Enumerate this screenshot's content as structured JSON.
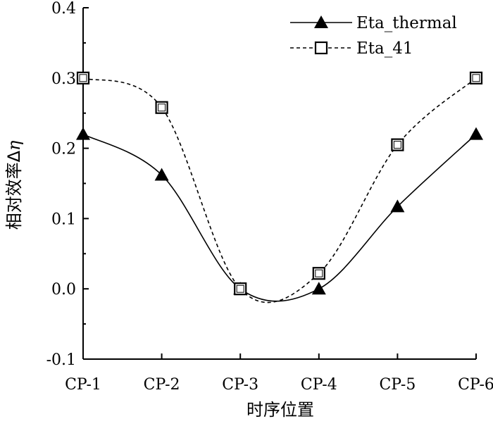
{
  "chart_data": {
    "type": "line",
    "categories": [
      "CP-1",
      "CP-2",
      "CP-3",
      "CP-4",
      "CP-5",
      "CP-6"
    ],
    "series": [
      {
        "name": "Eta_thermal",
        "values": [
          0.22,
          0.162,
          0.0,
          0.0,
          0.117,
          0.22
        ],
        "marker": "filled-triangle",
        "line_style": "solid",
        "color": "#000000"
      },
      {
        "name": "Eta_41",
        "values": [
          0.3,
          0.258,
          0.0,
          0.022,
          0.205,
          0.3
        ],
        "marker": "open-square",
        "line_style": "dashed",
        "color": "#000000"
      }
    ],
    "xlabel": "时序位置",
    "ylabel_text": "相对效率Δ",
    "ylabel_symbol": "η",
    "ylim": [
      -0.1,
      0.4
    ],
    "yticks": [
      "-0.1",
      "0.0",
      "0.1",
      "0.2",
      "0.3",
      "0.4"
    ],
    "ytick_values": [
      -0.1,
      0.0,
      0.1,
      0.2,
      0.3,
      0.4
    ],
    "grid": false,
    "legend_position": "top-right"
  }
}
